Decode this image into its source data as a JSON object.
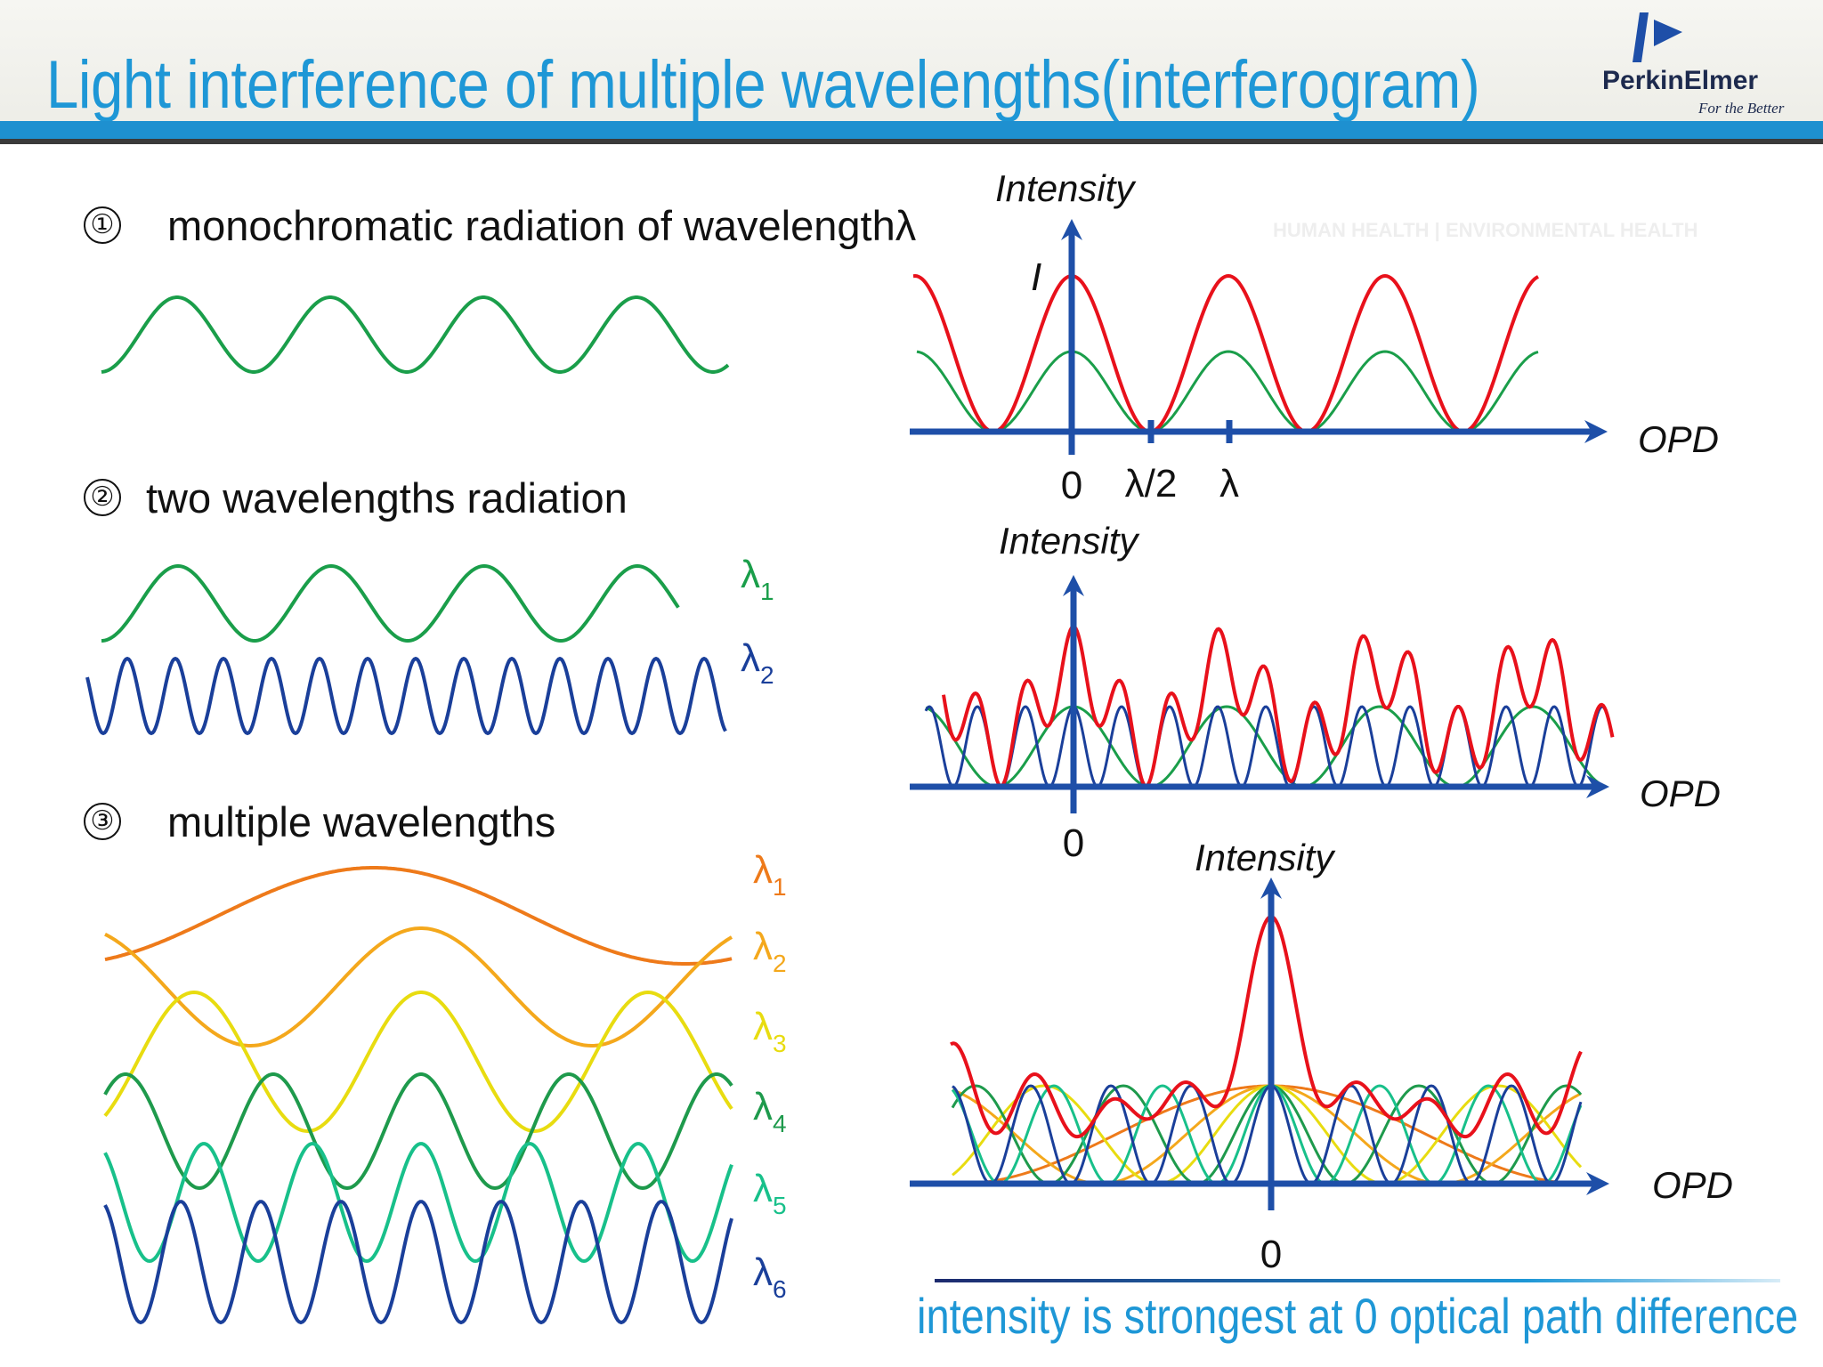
{
  "title": "Light interference of multiple wavelengths(interferogram)",
  "logo": {
    "name": "PerkinElmer",
    "tagline": "For the Better"
  },
  "watermark": "HUMAN HEALTH | ENVIRONMENTAL HEALTH",
  "sections": [
    {
      "number": "①",
      "text": "monochromatic radiation of wavelengthλ"
    },
    {
      "number": "②",
      "text": "two wavelengths radiation"
    },
    {
      "number": "③",
      "text": "multiple wavelengths"
    }
  ],
  "two_wave_labels": [
    {
      "base": "λ",
      "sub": "1",
      "color": "#1a9e4a"
    },
    {
      "base": "λ",
      "sub": "2",
      "color": "#1a3f9a"
    }
  ],
  "multi_wave_labels": [
    {
      "base": "λ",
      "sub": "1",
      "color": "#ee7a1a"
    },
    {
      "base": "λ",
      "sub": "2",
      "color": "#f4a81c"
    },
    {
      "base": "λ",
      "sub": "3",
      "color": "#e8dc10"
    },
    {
      "base": "λ",
      "sub": "4",
      "color": "#1e9a4c"
    },
    {
      "base": "λ",
      "sub": "5",
      "color": "#18c08a"
    },
    {
      "base": "λ",
      "sub": "6",
      "color": "#1a3f9a"
    }
  ],
  "plots": {
    "p1": {
      "y_label": "Intensity",
      "x_label": "OPD",
      "peak_label": "I",
      "ticks": [
        "0",
        "λ/2",
        "λ"
      ]
    },
    "p2": {
      "y_label": "Intensity",
      "x_label": "OPD",
      "ticks": [
        "0"
      ]
    },
    "p3": {
      "y_label": "Intensity",
      "x_label": "OPD",
      "ticks": [
        "0"
      ]
    }
  },
  "footer": "intensity is strongest at 0 optical path difference",
  "colors": {
    "title_blue": "#1e97d6",
    "axis_blue": "#1e4fa8",
    "red": "#e8111b",
    "green": "#1a9e4a",
    "navy": "#1a3f9a"
  }
}
